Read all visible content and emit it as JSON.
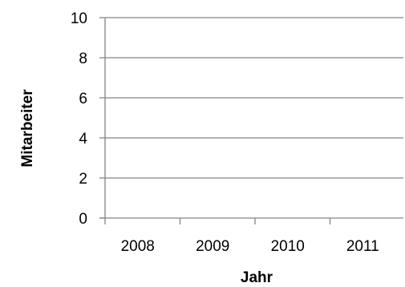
{
  "chart_data": {
    "type": "bar",
    "title": "",
    "xlabel": "Jahr",
    "ylabel": "Mitarbeiter",
    "categories": [
      "2008",
      "2009",
      "2010",
      "2011"
    ],
    "values": [
      0,
      0,
      0,
      0
    ],
    "ylim": [
      0,
      10
    ],
    "yticks": [
      0,
      2,
      4,
      6,
      8,
      10
    ],
    "grid": true,
    "legend": "none",
    "colors": {
      "gridline": "#858585",
      "axis": "#858585",
      "text": "#000000"
    }
  }
}
